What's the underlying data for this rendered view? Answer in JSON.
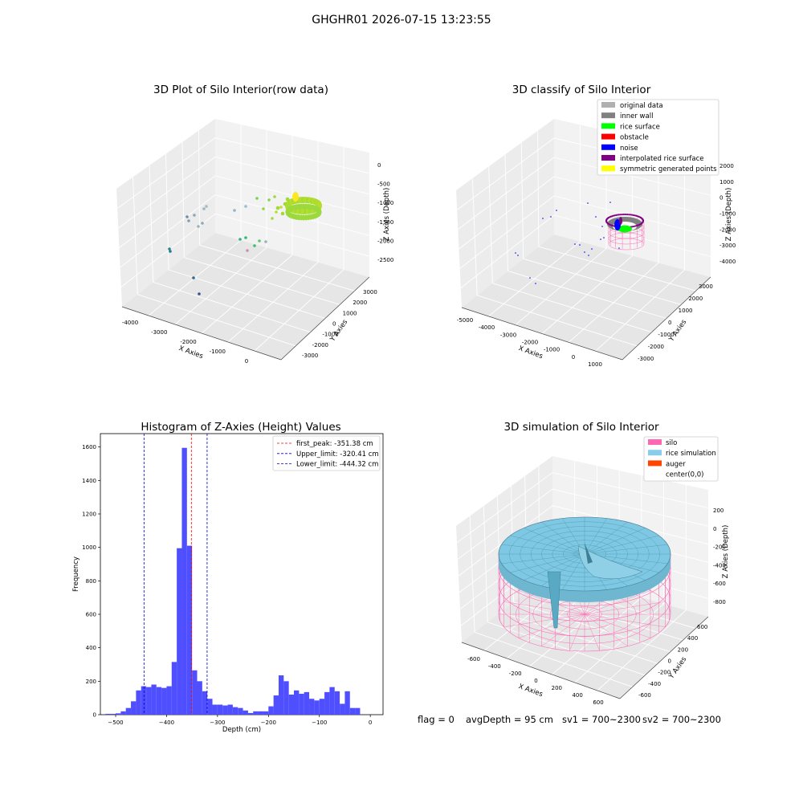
{
  "suptitle": "GHGHR01 2026-07-15 13:23:55",
  "colors": {
    "pane": "#f2f2f2",
    "pane_dark": "#e6e6e6",
    "grid": "#d9d9d9",
    "hist_bar": "#4b4bff",
    "peak_line": "#ff0000",
    "limit_line": "#0000cc",
    "silo_pink": "#ff69b4",
    "rice_blue": "#7ec8e3",
    "auger": "#ff4500"
  },
  "chart_data": [
    {
      "id": "raw",
      "type": "scatter3d",
      "title": "3D Plot of Silo Interior(row data)",
      "xlabel": "X Axies",
      "ylabel": "Y Axies",
      "zlabel": "Z Axies (Depth)",
      "xticks": [
        "-4000",
        "-3000",
        "-2000",
        "-1000",
        "0"
      ],
      "yticks": [
        "3000",
        "2000",
        "1000",
        "0",
        "-1000",
        "-2000",
        "-3000"
      ],
      "zticks": [
        "0",
        "-500",
        "-1000",
        "-1500",
        "-2000",
        "-2500"
      ],
      "colormap": "viridis"
    },
    {
      "id": "classify",
      "type": "scatter3d",
      "title": "3D classify of Silo Interior",
      "xlabel": "X Axies",
      "ylabel": "Y Axies",
      "zlabel": "Z Axies (Depth)",
      "xticks": [
        "-5000",
        "-4000",
        "-3000",
        "-2000",
        "-1000",
        "0",
        "1000"
      ],
      "yticks": [
        "3000",
        "2000",
        "1000",
        "0",
        "-1000",
        "-2000",
        "-3000"
      ],
      "zticks": [
        "2000",
        "1000",
        "0",
        "-1000",
        "-2000",
        "-3000",
        "-4000"
      ],
      "zticks_visible_note": "top tick partially hidden by legend",
      "legend": [
        {
          "label": "original data",
          "color": "#b0b0b0"
        },
        {
          "label": "inner wall",
          "color": "#808080"
        },
        {
          "label": "rice surface",
          "color": "#00ff00"
        },
        {
          "label": "obstacle",
          "color": "#ff0000"
        },
        {
          "label": "noise",
          "color": "#0000ff"
        },
        {
          "label": "interpolated rice surface",
          "color": "#800080"
        },
        {
          "label": "symmetric generated points",
          "color": "#ffff00"
        }
      ]
    },
    {
      "id": "hist",
      "type": "bar",
      "title": "Histogram of Z-Axies (Height) Values",
      "xlabel": "Depth (cm)",
      "ylabel": "Frequency",
      "xlim": [
        -530,
        25
      ],
      "ylim": [
        0,
        1680
      ],
      "xticks": [
        -500,
        -400,
        -300,
        -200,
        -100,
        0
      ],
      "yticks": [
        0,
        200,
        400,
        600,
        800,
        1000,
        1200,
        1400,
        1600
      ],
      "bin_width": 10,
      "bins": [
        {
          "x": -515,
          "v": 5
        },
        {
          "x": -505,
          "v": 5
        },
        {
          "x": -495,
          "v": 8
        },
        {
          "x": -485,
          "v": 20
        },
        {
          "x": -475,
          "v": 40
        },
        {
          "x": -465,
          "v": 80
        },
        {
          "x": -455,
          "v": 145
        },
        {
          "x": -445,
          "v": 170
        },
        {
          "x": -435,
          "v": 165
        },
        {
          "x": -425,
          "v": 180
        },
        {
          "x": -415,
          "v": 165
        },
        {
          "x": -405,
          "v": 160
        },
        {
          "x": -395,
          "v": 170
        },
        {
          "x": -385,
          "v": 315
        },
        {
          "x": -375,
          "v": 995
        },
        {
          "x": -365,
          "v": 1595
        },
        {
          "x": -355,
          "v": 1010
        },
        {
          "x": -345,
          "v": 265
        },
        {
          "x": -335,
          "v": 200
        },
        {
          "x": -325,
          "v": 140
        },
        {
          "x": -315,
          "v": 95
        },
        {
          "x": -305,
          "v": 60
        },
        {
          "x": -295,
          "v": 60
        },
        {
          "x": -285,
          "v": 55
        },
        {
          "x": -275,
          "v": 60
        },
        {
          "x": -265,
          "v": 45
        },
        {
          "x": -255,
          "v": 40
        },
        {
          "x": -245,
          "v": 25
        },
        {
          "x": -235,
          "v": 10
        },
        {
          "x": -225,
          "v": 20
        },
        {
          "x": -215,
          "v": 20
        },
        {
          "x": -205,
          "v": 20
        },
        {
          "x": -195,
          "v": 50
        },
        {
          "x": -185,
          "v": 115
        },
        {
          "x": -175,
          "v": 235
        },
        {
          "x": -165,
          "v": 200
        },
        {
          "x": -155,
          "v": 120
        },
        {
          "x": -145,
          "v": 145
        },
        {
          "x": -135,
          "v": 125
        },
        {
          "x": -125,
          "v": 135
        },
        {
          "x": -115,
          "v": 95
        },
        {
          "x": -105,
          "v": 85
        },
        {
          "x": -95,
          "v": 95
        },
        {
          "x": -85,
          "v": 135
        },
        {
          "x": -75,
          "v": 165
        },
        {
          "x": -65,
          "v": 140
        },
        {
          "x": -55,
          "v": 65
        },
        {
          "x": -45,
          "v": 140
        },
        {
          "x": -35,
          "v": 40
        },
        {
          "x": -25,
          "v": 40
        }
      ],
      "vlines": [
        {
          "x": -351.38,
          "label": "first_peak: -351.38 cm",
          "color": "#ff0000"
        },
        {
          "x": -320.41,
          "label": "Upper_limit: -320.41 cm",
          "color": "#0000cc"
        },
        {
          "x": -444.32,
          "label": "Lower_limit: -444.32 cm",
          "color": "#0000cc"
        }
      ]
    },
    {
      "id": "sim",
      "type": "surface3d",
      "title": "3D simulation of Silo Interior",
      "xlabel": "X Axies",
      "ylabel": "Y Axies",
      "zlabel": "Z Axies (Depth)",
      "xticks": [
        "-600",
        "-400",
        "-200",
        "0",
        "200",
        "400",
        "600"
      ],
      "yticks": [
        "600",
        "400",
        "200",
        "0",
        "-200",
        "-400",
        "-600"
      ],
      "zticks": [
        "200",
        "0",
        "-200",
        "-400",
        "-600",
        "-800"
      ],
      "legend": [
        {
          "label": "silo",
          "color": "#ff69b4"
        },
        {
          "label": "rice simulation",
          "color": "#87ceeb"
        },
        {
          "label": "auger",
          "color": "#ff4500"
        },
        {
          "label": "center(0,0)",
          "color": "none"
        }
      ]
    }
  ],
  "status": {
    "flag": "flag = 0",
    "avg": "avgDepth = 95 cm",
    "sv1": "sv1 = 700~2300",
    "sv2": "sv2 = 700~2300"
  }
}
